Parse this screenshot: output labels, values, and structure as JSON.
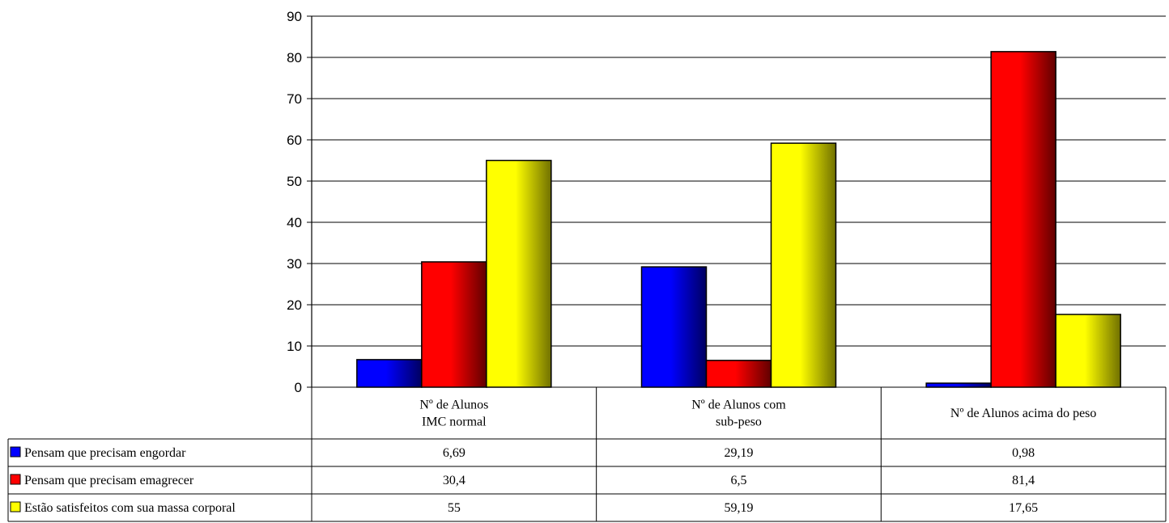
{
  "chart_data": {
    "type": "bar",
    "title": "",
    "xlabel": "",
    "ylabel": "",
    "ylim": [
      0,
      90
    ],
    "yticks": [
      0,
      10,
      20,
      30,
      40,
      50,
      60,
      70,
      80,
      90
    ],
    "grid": true,
    "legend_position": "bottom-left in data table",
    "categories": [
      [
        "Nº de Alunos",
        "IMC normal"
      ],
      [
        "Nº de Alunos com",
        "sub-peso"
      ],
      [
        "Nº de Alunos acima do peso"
      ]
    ],
    "series": [
      {
        "name": "Pensam que precisam engordar",
        "values": [
          6.69,
          29.19,
          0.98
        ],
        "value_labels": [
          "6,69",
          "29,19",
          "0,98"
        ],
        "color": "#0000ff",
        "color_dark": "#000060"
      },
      {
        "name": "Pensam que precisam emagrecer",
        "values": [
          30.4,
          6.5,
          81.4
        ],
        "value_labels": [
          "30,4",
          "6,5",
          "81,4"
        ],
        "color": "#ff0000",
        "color_dark": "#600000"
      },
      {
        "name": "Estão satisfeitos com sua massa corporal",
        "values": [
          55,
          59.19,
          17.65
        ],
        "value_labels": [
          "55",
          "59,19",
          "17,65"
        ],
        "color": "#ffff00",
        "color_dark": "#707000"
      }
    ]
  }
}
